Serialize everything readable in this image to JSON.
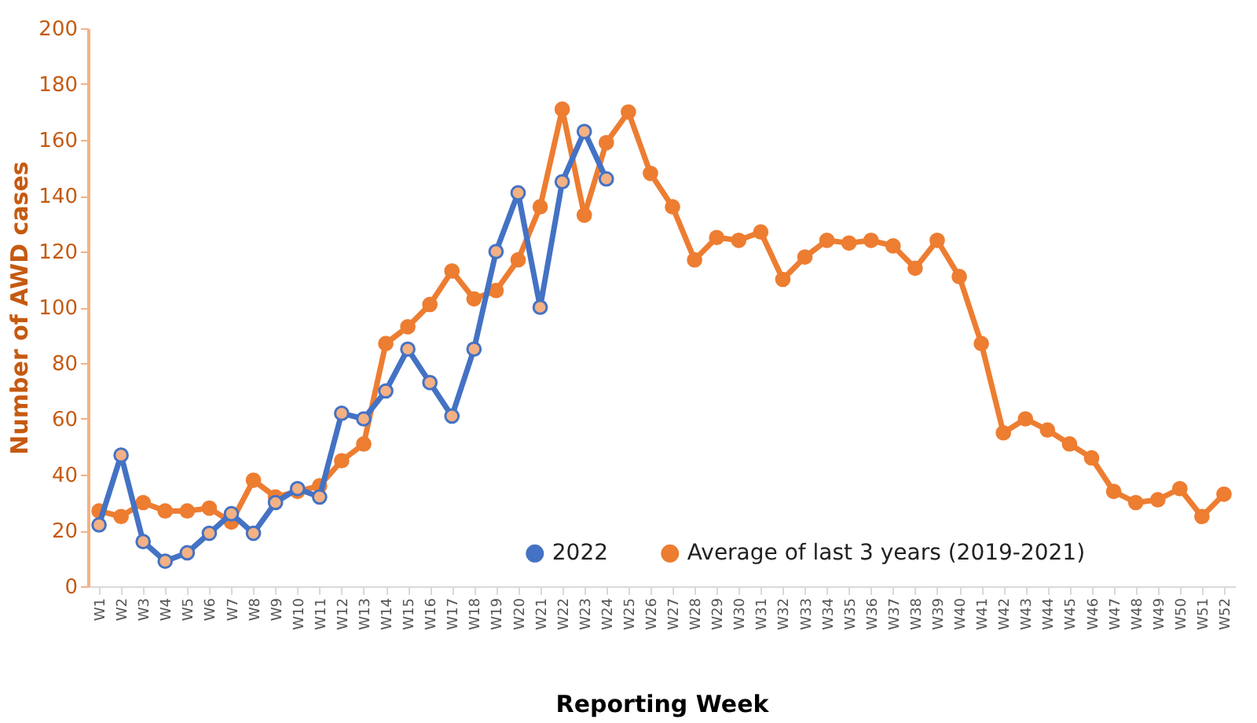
{
  "chart_data": {
    "type": "line",
    "xlabel": "Reporting Week",
    "ylabel": "Number of AWD cases",
    "categories": [
      "W1",
      "W2",
      "W3",
      "W4",
      "W5",
      "W6",
      "W7",
      "W8",
      "W9",
      "W10",
      "W11",
      "W12",
      "W13",
      "W14",
      "W15",
      "W16",
      "W17",
      "W18",
      "W19",
      "W20",
      "W21",
      "W22",
      "W23",
      "W24",
      "W25",
      "W26",
      "W27",
      "W28",
      "W29",
      "W30",
      "W31",
      "W32",
      "W33",
      "W34",
      "W35",
      "W36",
      "W37",
      "W38",
      "W39",
      "W40",
      "W41",
      "W42",
      "W43",
      "W44",
      "W45",
      "W46",
      "W47",
      "W48",
      "W49",
      "W50",
      "W51",
      "W52"
    ],
    "series": [
      {
        "name": "2022",
        "color": "#4472c4",
        "values": [
          22,
          47,
          16,
          9,
          12,
          19,
          26,
          19,
          30,
          35,
          32,
          62,
          60,
          70,
          85,
          73,
          61,
          85,
          120,
          141,
          100,
          145,
          163,
          146,
          null,
          null,
          null,
          null,
          null,
          null,
          null,
          null,
          null,
          null,
          null,
          null,
          null,
          null,
          null,
          null,
          null,
          null,
          null,
          null,
          null,
          null,
          null,
          null,
          null,
          null,
          null,
          null
        ]
      },
      {
        "name": "Average of last 3 years (2019-2021)",
        "color": "#ed7d31",
        "values": [
          27,
          25,
          30,
          27,
          27,
          28,
          23,
          38,
          32,
          34,
          36,
          45,
          51,
          87,
          93,
          101,
          113,
          103,
          106,
          117,
          136,
          171,
          133,
          159,
          170,
          148,
          136,
          117,
          125,
          124,
          127,
          110,
          118,
          124,
          123,
          124,
          122,
          114,
          124,
          111,
          87,
          55,
          60,
          56,
          51,
          46,
          34,
          30,
          31,
          35,
          25,
          33
        ]
      }
    ],
    "ylim": [
      0,
      200
    ],
    "yticks": [
      0,
      20,
      40,
      60,
      80,
      100,
      120,
      140,
      160,
      180,
      200
    ],
    "grid": false,
    "legend": "bottom",
    "marker": "circle",
    "line_style": "solid"
  }
}
